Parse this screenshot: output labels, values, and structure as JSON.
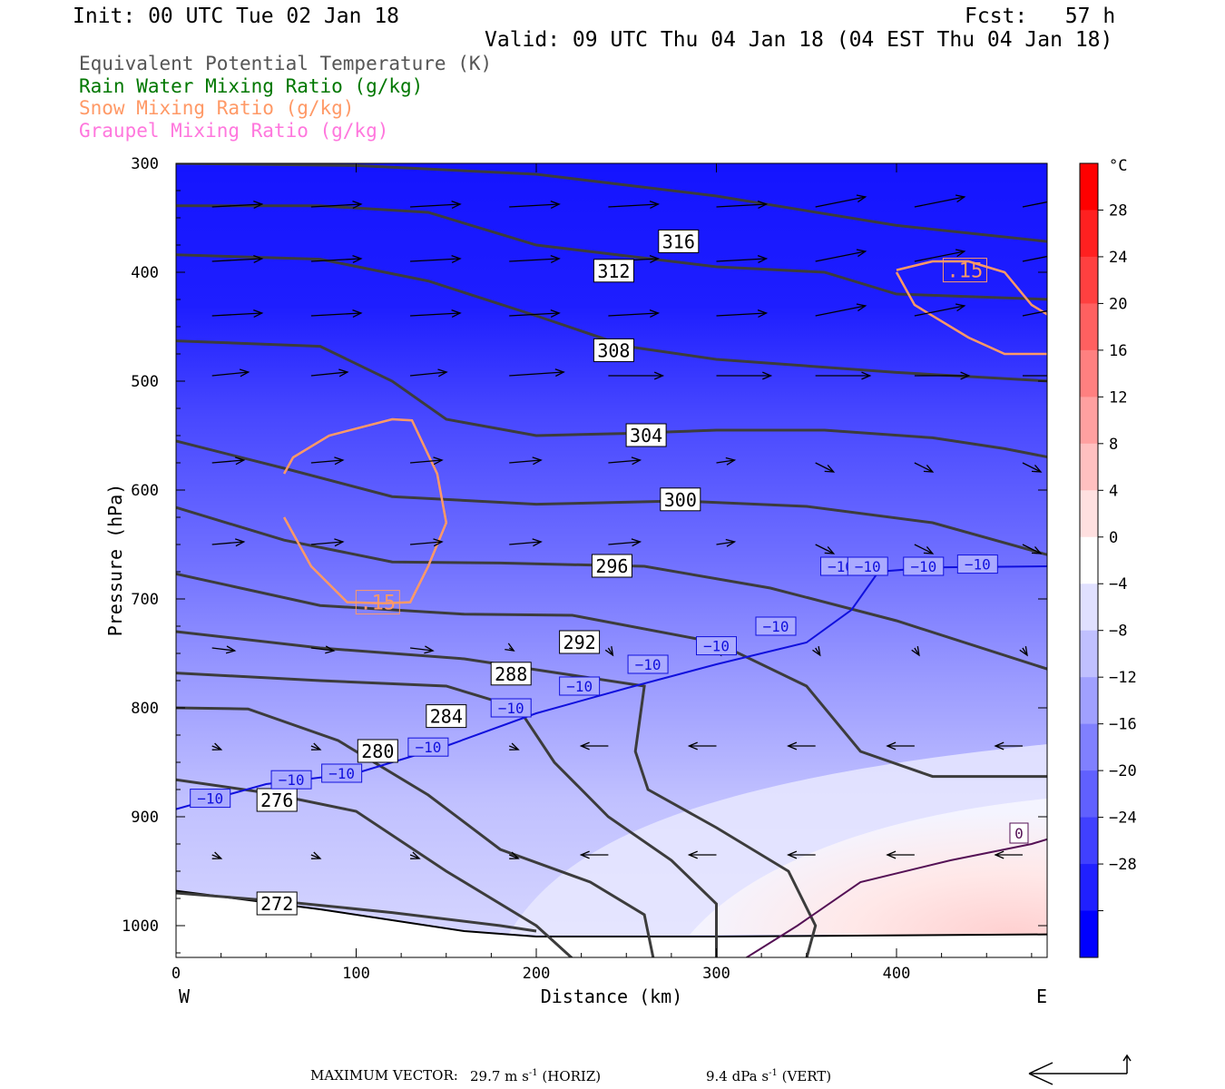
{
  "header": {
    "init": "Init: 00 UTC Tue 02 Jan 18",
    "fcst": "Fcst:   57 h",
    "valid": "Valid: 09 UTC Thu 04 Jan 18 (04 EST Thu 04 Jan 18)"
  },
  "legend": [
    {
      "label": "Equivalent Potential Temperature (K)",
      "color": "#555555"
    },
    {
      "label": "Rain Water Mixing Ratio (g/kg)",
      "color": "#007700"
    },
    {
      "label": "Snow Mixing Ratio (g/kg)",
      "color": "#ff9966"
    },
    {
      "label": "Graupel Mixing Ratio (g/kg)",
      "color": "#ff77dd"
    }
  ],
  "chart_data": {
    "type": "heatmap",
    "title": "",
    "xlabel": "Distance (km)",
    "ylabel": "Pressure (hPa)",
    "xlim": [
      0,
      485
    ],
    "ylim": [
      1028,
      300
    ],
    "x_ticks": [
      0,
      100,
      200,
      300,
      400
    ],
    "y_ticks": [
      300,
      400,
      500,
      600,
      700,
      800,
      900,
      1000
    ],
    "x_end_labels": {
      "left": "W",
      "right": "E"
    },
    "colorbar": {
      "unit": "°C",
      "labels": [
        28,
        24,
        20,
        16,
        12,
        8,
        4,
        0,
        -4,
        -8,
        -12,
        -16,
        -20,
        -24,
        -28
      ],
      "colors_top_to_bottom": [
        "#ff0000",
        "#ff2020",
        "#ff4040",
        "#ff6060",
        "#ff8080",
        "#ffa0a0",
        "#ffc0c0",
        "#ffe0e0",
        "#ffffff",
        "#e0e0ff",
        "#c0c0ff",
        "#a0a0ff",
        "#8080ff",
        "#6060ff",
        "#4040ff",
        "#2020ff",
        "#0000ff"
      ]
    },
    "theta_e_contours": [
      {
        "value": 316,
        "label": "316",
        "points": [
          [
            0,
            300
          ],
          [
            100,
            302
          ],
          [
            200,
            310
          ],
          [
            300,
            330
          ],
          [
            400,
            357
          ],
          [
            485,
            372
          ]
        ],
        "label_at": [
          279,
          372
        ]
      },
      {
        "value": 312,
        "label": "312",
        "points": [
          [
            0,
            339
          ],
          [
            80,
            339
          ],
          [
            140,
            345
          ],
          [
            200,
            375
          ],
          [
            300,
            395
          ],
          [
            360,
            400
          ],
          [
            400,
            420
          ],
          [
            485,
            425
          ]
        ],
        "label_at": [
          243,
          399
        ]
      },
      {
        "value": 308,
        "label": "308",
        "points": [
          [
            0,
            384
          ],
          [
            80,
            388
          ],
          [
            140,
            408
          ],
          [
            200,
            440
          ],
          [
            250,
            468
          ],
          [
            300,
            480
          ],
          [
            400,
            492
          ],
          [
            485,
            500
          ]
        ],
        "label_at": [
          243,
          472
        ]
      },
      {
        "value": 304,
        "label": "304",
        "points": [
          [
            0,
            463
          ],
          [
            80,
            468
          ],
          [
            120,
            500
          ],
          [
            150,
            535
          ],
          [
            200,
            550
          ],
          [
            250,
            548
          ],
          [
            300,
            545
          ],
          [
            360,
            545
          ],
          [
            420,
            552
          ],
          [
            460,
            562
          ],
          [
            485,
            570
          ]
        ],
        "label_at": [
          261,
          550
        ]
      },
      {
        "value": 300,
        "label": "300",
        "points": [
          [
            0,
            555
          ],
          [
            60,
            580
          ],
          [
            120,
            606
          ],
          [
            200,
            613
          ],
          [
            280,
            610
          ],
          [
            350,
            615
          ],
          [
            420,
            630
          ],
          [
            485,
            660
          ]
        ],
        "label_at": [
          280,
          609
        ]
      },
      {
        "value": 296,
        "label": "296",
        "points": [
          [
            0,
            616
          ],
          [
            60,
            646
          ],
          [
            120,
            666
          ],
          [
            180,
            667
          ],
          [
            260,
            670
          ],
          [
            330,
            690
          ],
          [
            400,
            720
          ],
          [
            485,
            765
          ]
        ],
        "label_at": [
          242,
          670
        ]
      },
      {
        "value": 292,
        "label": "292",
        "points": [
          [
            0,
            677
          ],
          [
            80,
            706
          ],
          [
            160,
            714
          ],
          [
            220,
            715
          ],
          [
            300,
            740
          ],
          [
            350,
            780
          ],
          [
            380,
            840
          ],
          [
            420,
            863
          ],
          [
            485,
            863
          ]
        ],
        "label_at": [
          224,
          740
        ]
      },
      {
        "value": 288,
        "label": "288",
        "points": [
          [
            0,
            730
          ],
          [
            80,
            745
          ],
          [
            160,
            755
          ],
          [
            220,
            770
          ],
          [
            260,
            780
          ],
          [
            255,
            840
          ],
          [
            262,
            875
          ],
          [
            300,
            910
          ],
          [
            340,
            950
          ],
          [
            355,
            1000
          ],
          [
            350,
            1030
          ]
        ],
        "label_at": [
          186,
          769
        ]
      },
      {
        "value": 284,
        "label": "284",
        "points": [
          [
            0,
            768
          ],
          [
            80,
            775
          ],
          [
            150,
            780
          ],
          [
            190,
            800
          ],
          [
            210,
            850
          ],
          [
            240,
            900
          ],
          [
            275,
            940
          ],
          [
            300,
            980
          ],
          [
            300,
            1030
          ]
        ],
        "label_at": [
          150,
          808
        ]
      },
      {
        "value": 280,
        "label": "280",
        "points": [
          [
            0,
            800
          ],
          [
            40,
            801
          ],
          [
            90,
            830
          ],
          [
            140,
            880
          ],
          [
            180,
            930
          ],
          [
            230,
            960
          ],
          [
            260,
            990
          ],
          [
            265,
            1030
          ]
        ],
        "label_at": [
          112,
          840
        ]
      },
      {
        "value": 276,
        "label": "276",
        "points": [
          [
            0,
            866
          ],
          [
            50,
            878
          ],
          [
            100,
            895
          ],
          [
            150,
            950
          ],
          [
            200,
            1000
          ],
          [
            220,
            1030
          ]
        ],
        "label_at": [
          56,
          885
        ]
      },
      {
        "value": 272,
        "label": "272",
        "points": [
          [
            0,
            970
          ],
          [
            60,
            978
          ],
          [
            120,
            988
          ],
          [
            180,
            1000
          ],
          [
            200,
            1005
          ]
        ],
        "label_at": [
          56,
          980
        ]
      }
    ],
    "temperature_contours": [
      {
        "value": -10,
        "label": "−10",
        "points": [
          [
            0,
            893
          ],
          [
            50,
            870
          ],
          [
            100,
            860
          ],
          [
            150,
            835
          ],
          [
            200,
            805
          ],
          [
            250,
            782
          ],
          [
            300,
            760
          ],
          [
            350,
            740
          ],
          [
            375,
            710
          ],
          [
            390,
            675
          ],
          [
            420,
            671
          ],
          [
            485,
            670
          ]
        ],
        "label_points": [
          [
            19,
            883
          ],
          [
            64,
            866
          ],
          [
            92,
            860
          ],
          [
            140,
            836
          ],
          [
            186,
            800
          ],
          [
            224,
            780
          ],
          [
            262,
            760
          ],
          [
            300,
            743
          ],
          [
            333,
            725
          ],
          [
            369,
            670
          ],
          [
            384,
            670
          ],
          [
            415,
            670
          ],
          [
            445,
            668
          ]
        ]
      },
      {
        "value": 0,
        "label": "0",
        "points": [
          [
            316,
            1030
          ],
          [
            345,
            1000
          ],
          [
            380,
            960
          ],
          [
            430,
            940
          ],
          [
            475,
            925
          ],
          [
            485,
            920
          ]
        ],
        "label_at": [
          468,
          915
        ]
      }
    ],
    "snow_contours": [
      {
        "value": 0.15,
        "label": ".15",
        "points": [
          [
            60,
            585
          ],
          [
            65,
            570
          ],
          [
            85,
            550
          ],
          [
            120,
            535
          ],
          [
            131,
            536
          ],
          [
            145,
            585
          ],
          [
            150,
            630
          ],
          [
            140,
            670
          ],
          [
            130,
            703
          ],
          [
            115,
            704
          ],
          [
            95,
            703
          ],
          [
            75,
            670
          ],
          [
            60,
            625
          ]
        ],
        "label_at": [
          112,
          703
        ]
      },
      {
        "value": 0.15,
        "label": ".15",
        "points": [
          [
            400,
            398
          ],
          [
            420,
            390
          ],
          [
            440,
            390
          ],
          [
            460,
            400
          ],
          [
            475,
            430
          ],
          [
            485,
            440
          ]
        ],
        "label_at": [
          438,
          398
        ]
      },
      {
        "value": 0.15,
        "label": "",
        "points": [
          [
            400,
            400
          ],
          [
            410,
            430
          ],
          [
            440,
            460
          ],
          [
            460,
            475
          ],
          [
            485,
            475
          ]
        ]
      }
    ],
    "max_vector": {
      "horiz": "29.7",
      "horiz_unit": "m s",
      "horiz_tag": "(HORIZ)",
      "vert": "9.4",
      "vert_unit": "dPa s",
      "vert_tag": "(VERT)",
      "exponent": "-1"
    }
  },
  "footer": {
    "max_vector_label": "MAXIMUM VECTOR:",
    "horiz_text": "29.7 m s",
    "horiz_tag": "(HORIZ)",
    "vert_text": "9.4 dPa s",
    "vert_tag": "(VERT)",
    "exponent": "-1"
  }
}
